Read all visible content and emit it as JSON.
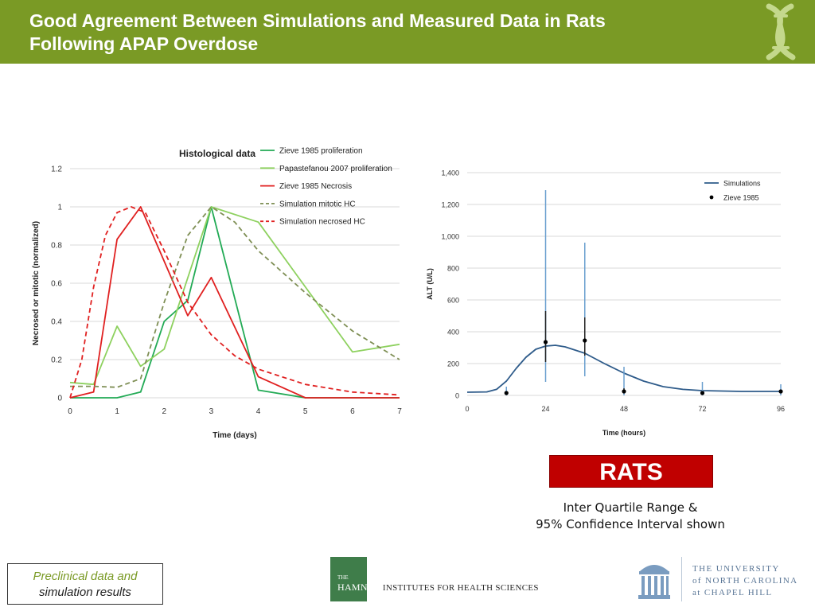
{
  "header": {
    "title_line1": "Good Agreement Between Simulations and Measured Data in Rats",
    "title_line2": "Following APAP Overdose",
    "background": "#7a9a25",
    "logo_icon": "dna-helix-icon"
  },
  "chart_data": [
    {
      "type": "line",
      "title": "Histological data",
      "xlabel": "Time (days)",
      "ylabel": "Necrosed or mitotic (normalized)",
      "xlim": [
        0,
        7
      ],
      "ylim": [
        0,
        1.2
      ],
      "x_ticks": [
        "0",
        "1",
        "2",
        "3",
        "4",
        "5",
        "6",
        "7"
      ],
      "y_ticks": [
        "0",
        "0.2",
        "0.4",
        "0.6",
        "0.8",
        "1",
        "1.2"
      ],
      "grid": true,
      "legend_position": "top-right",
      "series": [
        {
          "name": "Zieve 1985  proliferation",
          "color": "#22aa55",
          "style": "solid",
          "points": [
            [
              0,
              0
            ],
            [
              0.5,
              0
            ],
            [
              1,
              0
            ],
            [
              1.5,
              0.03
            ],
            [
              2,
              0.4
            ],
            [
              2.5,
              0.51
            ],
            [
              3,
              1.0
            ],
            [
              4,
              0.04
            ],
            [
              5,
              0
            ],
            [
              6,
              0
            ],
            [
              7,
              0
            ]
          ]
        },
        {
          "name": "Papastefanou 2007 proliferation",
          "color": "#8ed15f",
          "style": "solid",
          "points": [
            [
              0,
              0.08
            ],
            [
              0.5,
              0.07
            ],
            [
              1,
              0.375
            ],
            [
              1.5,
              0.165
            ],
            [
              2,
              0.255
            ],
            [
              3,
              1.0
            ],
            [
              4,
              0.92
            ],
            [
              6,
              0.24
            ],
            [
              7,
              0.28
            ]
          ]
        },
        {
          "name": "Zieve 1985  Necrosis",
          "color": "#e02020",
          "style": "solid",
          "points": [
            [
              0,
              0
            ],
            [
              0.5,
              0.03
            ],
            [
              1,
              0.83
            ],
            [
              1.5,
              1.0
            ],
            [
              2.5,
              0.43
            ],
            [
              3,
              0.63
            ],
            [
              4,
              0.11
            ],
            [
              5,
              0
            ],
            [
              6,
              0
            ],
            [
              7,
              0
            ]
          ]
        },
        {
          "name": "Simulation mitotic HC",
          "color": "#7f8f55",
          "style": "dashed",
          "points": [
            [
              0,
              0.06
            ],
            [
              0.5,
              0.06
            ],
            [
              1,
              0.055
            ],
            [
              1.5,
              0.1
            ],
            [
              2,
              0.5
            ],
            [
              2.5,
              0.85
            ],
            [
              3,
              1.0
            ],
            [
              3.5,
              0.92
            ],
            [
              4,
              0.77
            ],
            [
              5,
              0.55
            ],
            [
              6,
              0.35
            ],
            [
              7,
              0.2
            ]
          ]
        },
        {
          "name": "Simulation necrosed HC",
          "color": "#e02020",
          "style": "dashed",
          "points": [
            [
              0,
              0
            ],
            [
              0.25,
              0.2
            ],
            [
              0.5,
              0.58
            ],
            [
              0.75,
              0.85
            ],
            [
              1,
              0.97
            ],
            [
              1.3,
              1.0
            ],
            [
              1.6,
              0.97
            ],
            [
              2,
              0.77
            ],
            [
              2.5,
              0.5
            ],
            [
              3,
              0.33
            ],
            [
              3.5,
              0.22
            ],
            [
              4,
              0.15
            ],
            [
              5,
              0.07
            ],
            [
              6,
              0.03
            ],
            [
              7,
              0.015
            ]
          ]
        }
      ]
    },
    {
      "type": "line",
      "title": "",
      "xlabel": "Time (hours)",
      "ylabel": "ALT (U/L)",
      "xlim": [
        0,
        96
      ],
      "ylim": [
        0,
        1400
      ],
      "x_ticks": [
        "0",
        "24",
        "48",
        "72",
        "96"
      ],
      "y_ticks": [
        "0",
        "200",
        "400",
        "600",
        "800",
        "1,000",
        "1,200",
        "1,400"
      ],
      "grid": true,
      "legend_position": "top-right",
      "series": [
        {
          "name": "Simulations",
          "color": "#2e5b8a",
          "style": "solid",
          "points": [
            [
              0,
              20
            ],
            [
              6,
              22
            ],
            [
              9,
              38
            ],
            [
              12,
              90
            ],
            [
              15,
              170
            ],
            [
              18,
              240
            ],
            [
              21,
              290
            ],
            [
              24,
              310
            ],
            [
              27,
              315
            ],
            [
              30,
              305
            ],
            [
              36,
              265
            ],
            [
              42,
              200
            ],
            [
              48,
              140
            ],
            [
              54,
              90
            ],
            [
              60,
              55
            ],
            [
              66,
              38
            ],
            [
              72,
              30
            ],
            [
              84,
              25
            ],
            [
              96,
              25
            ]
          ]
        },
        {
          "name": "Zieve 1985",
          "color": "#000000",
          "style": "marker",
          "points": [
            {
              "x": 12,
              "y": 15,
              "iqr": [
                10,
                22
              ],
              "ci": [
                0,
                55
              ]
            },
            {
              "x": 24,
              "y": 335,
              "iqr": [
                210,
                530
              ],
              "ci": [
                85,
                1290
              ]
            },
            {
              "x": 36,
              "y": 345,
              "iqr": [
                250,
                490
              ],
              "ci": [
                120,
                960
              ]
            },
            {
              "x": 48,
              "y": 25,
              "iqr": [
                15,
                45
              ],
              "ci": [
                0,
                180
              ]
            },
            {
              "x": 72,
              "y": 15,
              "iqr": [
                10,
                25
              ],
              "ci": [
                0,
                85
              ]
            },
            {
              "x": 96,
              "y": 25,
              "iqr": [
                18,
                35
              ],
              "ci": [
                0,
                70
              ]
            }
          ]
        }
      ]
    }
  ],
  "rats_label": "RATS",
  "rats_color": "#c00000",
  "note": {
    "line1": "Inter Quartile Range &",
    "line2": "95% Confidence Interval shown"
  },
  "caption": {
    "line1": "Preclinical data and",
    "line2": "simulation results",
    "accent": "#7a9a25"
  },
  "hamner_logo": {
    "the": "THE",
    "name": "HAMNER",
    "rest": " INSTITUTES FOR HEALTH SCIENCES"
  },
  "unc_logo": {
    "line1": "THE UNIVERSITY",
    "line2": "of NORTH CAROLINA",
    "line3": "at CHAPEL HILL",
    "icon": "old-well-icon"
  }
}
